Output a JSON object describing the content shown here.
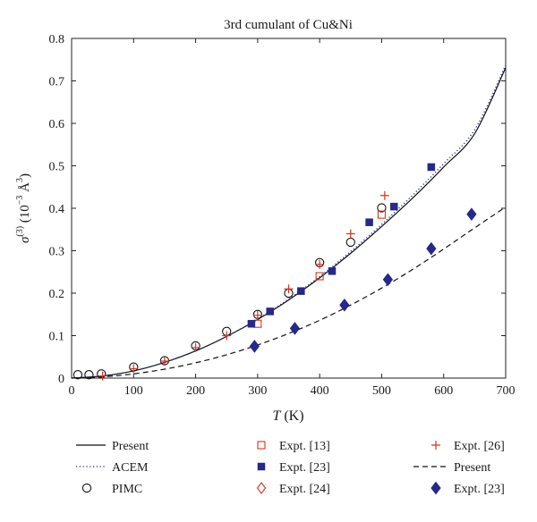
{
  "chart_data": {
    "type": "scatter",
    "title": "3rd cumulant of Cu&Ni",
    "xlabel": "T (K)",
    "ylabel": "σ(3) (10−3 Å3)",
    "xlim": [
      0,
      700
    ],
    "ylim": [
      0,
      0.8
    ],
    "x_ticks": [
      "0",
      "100",
      "200",
      "300",
      "400",
      "500",
      "600",
      "700"
    ],
    "y_ticks": [
      "0",
      "0.1",
      "0.2",
      "0.3",
      "0.4",
      "0.5",
      "0.6",
      "0.7",
      "0.8"
    ],
    "grid": false,
    "legend_position": "bottom",
    "series": [
      {
        "name": "Present",
        "kind": "line",
        "style": "solid",
        "color": "#111111",
        "x": [
          0,
          50,
          100,
          150,
          200,
          250,
          300,
          350,
          400,
          450,
          500,
          550,
          600,
          650,
          700
        ],
        "y": [
          0.0,
          0.005,
          0.017,
          0.037,
          0.064,
          0.098,
          0.138,
          0.184,
          0.236,
          0.294,
          0.357,
          0.424,
          0.497,
          0.576,
          0.731
        ]
      },
      {
        "name": "ACEM",
        "kind": "line",
        "style": "dotted",
        "color": "#1f2a8a",
        "x": [
          0,
          50,
          100,
          150,
          200,
          250,
          300,
          350,
          400,
          450,
          500,
          550,
          600,
          650,
          700
        ],
        "y": [
          0.0,
          0.005,
          0.017,
          0.037,
          0.064,
          0.098,
          0.139,
          0.186,
          0.239,
          0.298,
          0.362,
          0.431,
          0.505,
          0.585,
          0.737
        ]
      },
      {
        "name": "PIMC",
        "kind": "marker",
        "marker": "circle-open",
        "color": "#111111",
        "x": [
          10,
          28,
          48,
          100,
          150,
          200,
          250,
          300,
          350,
          400,
          450,
          500
        ],
        "y": [
          0.008,
          0.008,
          0.01,
          0.026,
          0.041,
          0.076,
          0.11,
          0.15,
          0.2,
          0.272,
          0.32,
          0.401
        ]
      },
      {
        "name": "Expt. [13]",
        "kind": "marker",
        "marker": "square-open",
        "color": "#d9341c",
        "x": [
          300,
          400,
          500
        ],
        "y": [
          0.128,
          0.24,
          0.385
        ]
      },
      {
        "name": "Expt. [23]",
        "kind": "marker",
        "marker": "square-filled",
        "color": "#26288a",
        "x": [
          290,
          320,
          370,
          420,
          480,
          520,
          580
        ],
        "y": [
          0.128,
          0.157,
          0.205,
          0.252,
          0.367,
          0.404,
          0.497
        ]
      },
      {
        "name": "Expt. [24]",
        "kind": "marker",
        "marker": "diamond-open",
        "color": "#d9341c",
        "x": [],
        "y": []
      },
      {
        "name": "Expt. [26]",
        "kind": "marker",
        "marker": "plus",
        "color": "#d9341c",
        "x": [
          50,
          100,
          150,
          200,
          250,
          300,
          350,
          400,
          450,
          505
        ],
        "y": [
          0.005,
          0.022,
          0.04,
          0.072,
          0.1,
          0.148,
          0.21,
          0.268,
          0.34,
          0.43
        ]
      },
      {
        "name": "Present",
        "kind": "line",
        "style": "dashed",
        "color": "#111111",
        "x": [
          0,
          50,
          100,
          150,
          200,
          250,
          300,
          350,
          400,
          450,
          500,
          550,
          600,
          650,
          700
        ],
        "y": [
          0.0,
          0.003,
          0.01,
          0.021,
          0.036,
          0.055,
          0.078,
          0.105,
          0.136,
          0.172,
          0.212,
          0.256,
          0.304,
          0.354,
          0.403
        ]
      },
      {
        "name": "Expt. [23]",
        "kind": "marker",
        "marker": "diamond-filled",
        "color": "#26288a",
        "x": [
          295,
          360,
          440,
          510,
          580,
          645
        ],
        "y": [
          0.075,
          0.117,
          0.172,
          0.232,
          0.305,
          0.386
        ]
      }
    ]
  }
}
